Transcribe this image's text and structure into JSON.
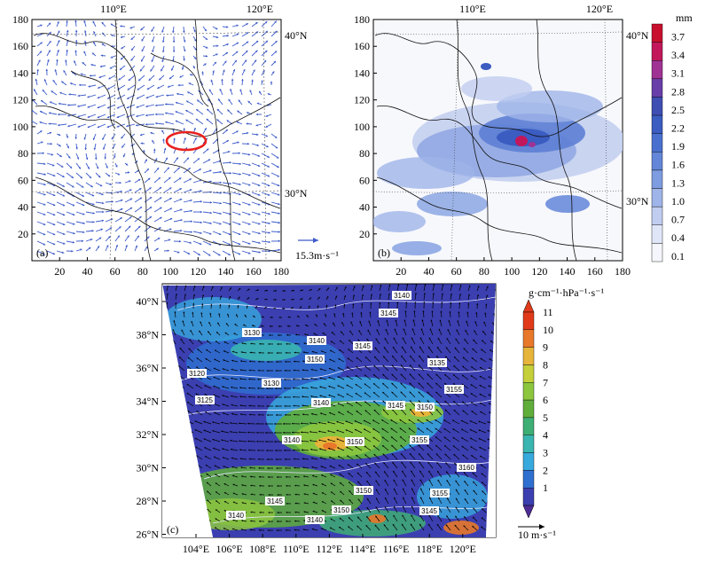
{
  "panel_a": {
    "label": "(a)",
    "x_ticks": [
      "20",
      "40",
      "60",
      "80",
      "100",
      "120",
      "140",
      "160",
      "180"
    ],
    "y_ticks": [
      "20",
      "40",
      "60",
      "80",
      "100",
      "120",
      "140",
      "160",
      "180"
    ],
    "lon_labels": [
      "110°E",
      "120°E"
    ],
    "lat_labels": [
      "40°N",
      "30°N"
    ],
    "ref_vector_label": "15.3m·s⁻¹",
    "vector_color": "#3d5bc9",
    "highlight_color": "#e8211e"
  },
  "panel_b": {
    "label": "(b)",
    "x_ticks": [
      "20",
      "40",
      "60",
      "80",
      "100",
      "120",
      "140",
      "160",
      "180"
    ],
    "y_ticks": [
      "20",
      "40",
      "60",
      "80",
      "100",
      "120",
      "140",
      "160",
      "180"
    ],
    "lon_labels": [
      "110°E",
      "120°E"
    ],
    "lat_labels": [
      "40°N",
      "30°N"
    ],
    "colorbar_unit": "mm",
    "colorbar_ticks": [
      "3.7",
      "3.4",
      "3.1",
      "2.8",
      "2.5",
      "2.2",
      "1.9",
      "1.6",
      "1.3",
      "1.0",
      "0.7",
      "0.4",
      "0.1"
    ],
    "colorbar_colors": [
      "#c8102e",
      "#c2185b",
      "#a03294",
      "#6a3ea8",
      "#3f4eb3",
      "#3b5cc1",
      "#4a70cf",
      "#6386d8",
      "#7e9ce0",
      "#9fb4e8",
      "#c0cdf0",
      "#dfe6f7",
      "#f4f6fb"
    ]
  },
  "panel_c": {
    "label": "(c)",
    "lon_labels": [
      "104°E",
      "106°E",
      "108°E",
      "110°E",
      "112°E",
      "114°E",
      "116°E",
      "118°E",
      "120°E"
    ],
    "lat_labels": [
      "40°N",
      "38°N",
      "36°N",
      "34°N",
      "32°N",
      "30°N",
      "28°N",
      "26°N"
    ],
    "colorbar_unit": "g·cm⁻¹·hPa⁻¹·s⁻¹",
    "colorbar_ticks": [
      "11",
      "10",
      "9",
      "8",
      "7",
      "6",
      "5",
      "4",
      "3",
      "2",
      "1"
    ],
    "colorbar_colors": [
      "#e03a1a",
      "#e8782a",
      "#e6b43a",
      "#c4cf3a",
      "#8cc63f",
      "#5fae3c",
      "#3fae74",
      "#3ab5b0",
      "#38a9dd",
      "#2f6fd0",
      "#3b3fb0",
      "#4d2c93"
    ],
    "contour_labels": [
      "3140",
      "3145",
      "3130",
      "3140",
      "3145",
      "3150",
      "3120",
      "3135",
      "3130",
      "3155",
      "3125",
      "3140",
      "3145",
      "3150",
      "3140",
      "3150",
      "3155",
      "3160",
      "3150",
      "3155",
      "3140",
      "3145",
      "3150",
      "3140",
      "3145"
    ],
    "ref_vector_label": "10 m·s⁻¹"
  }
}
